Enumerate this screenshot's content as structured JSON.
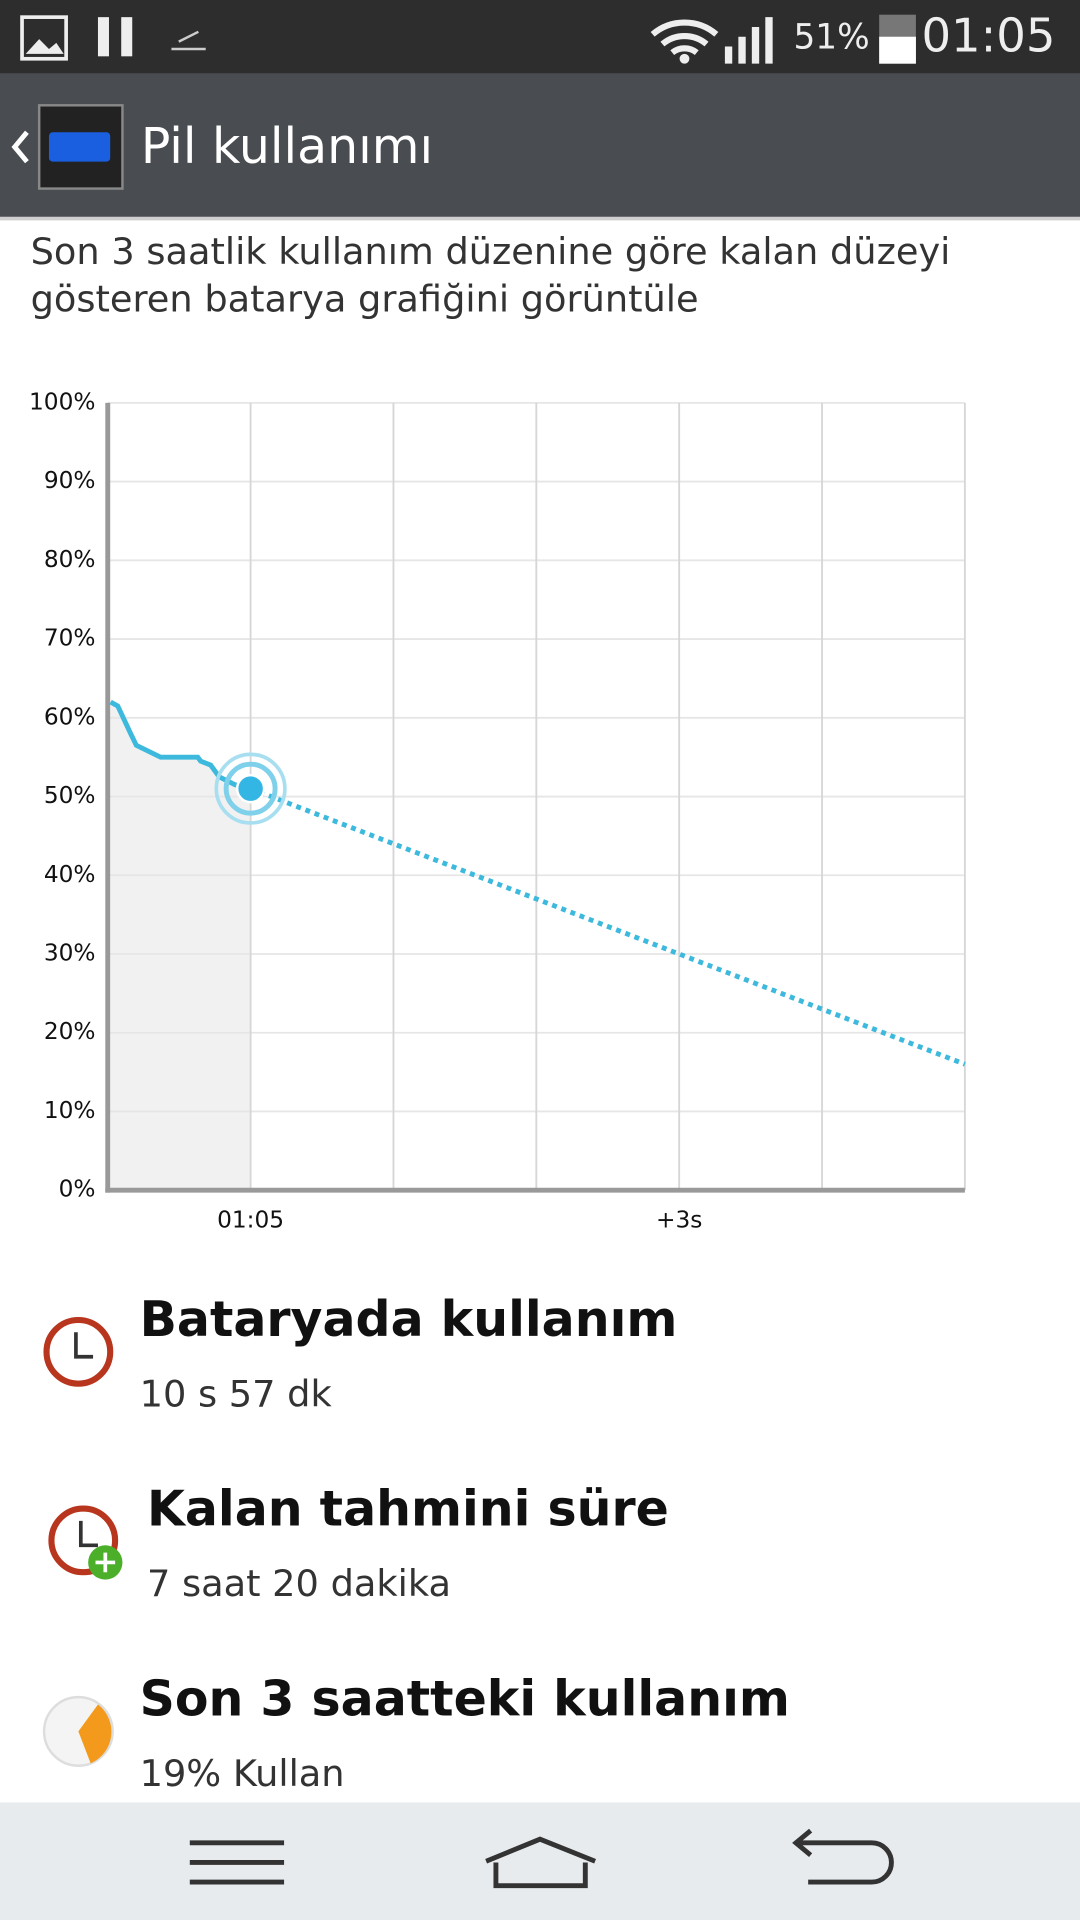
{
  "status_bar": {
    "battery": "51%",
    "time": "01:05"
  },
  "header": {
    "title": "Pil kullanımı"
  },
  "description": [
    "Son 3 saatlik kullanım düzenine göre kalan düzeyi",
    "gösteren batarya grafiğini görüntüle"
  ],
  "chart_data": {
    "type": "line",
    "xlim": [
      -1,
      5
    ],
    "ylim": [
      0,
      100
    ],
    "xticks": [
      {
        "value": 0,
        "label": "01:05"
      },
      {
        "value": 3,
        "label": "+3s"
      }
    ],
    "xgrid": [
      -1,
      0,
      1,
      2,
      3,
      4,
      5
    ],
    "yticks": [
      {
        "value": 0,
        "label": "0%"
      },
      {
        "value": 10,
        "label": "10%"
      },
      {
        "value": 20,
        "label": "20%"
      },
      {
        "value": 30,
        "label": "30%"
      },
      {
        "value": 40,
        "label": "40%"
      },
      {
        "value": 50,
        "label": "50%"
      },
      {
        "value": 60,
        "label": "60%"
      },
      {
        "value": 70,
        "label": "70%"
      },
      {
        "value": 80,
        "label": "80%"
      },
      {
        "value": 90,
        "label": "90%"
      },
      {
        "value": 100,
        "label": "100%"
      }
    ],
    "grid": true,
    "series": [
      {
        "color": "#3cb9dd",
        "style": "solid",
        "fill": "#f1f1f1",
        "x": [
          -0.98,
          -0.93,
          -0.84,
          -0.8,
          -0.63,
          -0.37,
          -0.35,
          -0.28,
          -0.22,
          -0.11,
          0
        ],
        "values": [
          62,
          61.5,
          58,
          56.5,
          55,
          55,
          54.5,
          54,
          52.5,
          51.5,
          51
        ]
      },
      {
        "color": "#3cb9dd",
        "style": "dotted",
        "x": [
          0,
          5
        ],
        "values": [
          51,
          16
        ]
      }
    ]
  },
  "items": [
    {
      "title": "Bataryada kullanım",
      "value": "10 s 57 dk"
    },
    {
      "title": "Kalan tahmini süre",
      "value": "7 saat 20 dakika"
    },
    {
      "title": "Son 3 saatteki kullanım",
      "value": "19% Kullan"
    }
  ]
}
